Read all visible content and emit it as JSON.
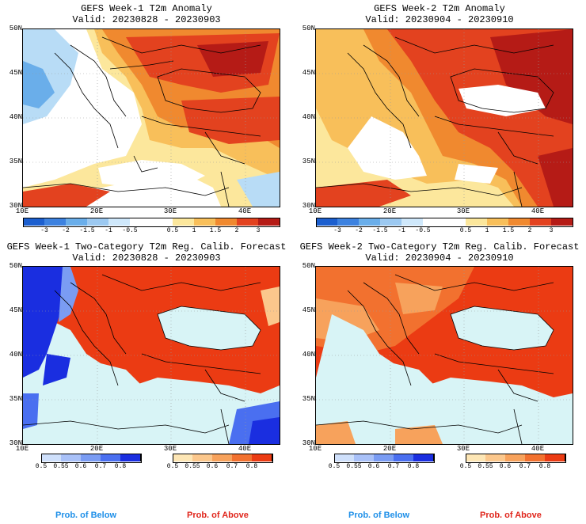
{
  "colors": {
    "sea": "#d8f4f6",
    "land_neutral": "#ffffff",
    "warm1": "#fce79c",
    "warm2": "#f8bf5a",
    "warm3": "#f0892f",
    "warm4": "#e3421f",
    "warm5": "#b51b16",
    "cool1": "#b8dcf6",
    "cool2": "#6aaeea",
    "prob_above_1": "#fde6b5",
    "prob_above_2": "#fbc78c",
    "prob_above_3": "#f7a25c",
    "prob_above_4": "#f2712f",
    "prob_above_5": "#eb3b13",
    "prob_below_1": "#cfe0fb",
    "prob_below_2": "#a9c1f8",
    "prob_below_3": "#7a9cf3",
    "prob_below_4": "#4a6ff0",
    "prob_below_5": "#1a2ee0",
    "below_label": "#1e8fe8",
    "above_label": "#e0261c"
  },
  "axes": {
    "lat_labels": [
      "50N",
      "45N",
      "40N",
      "35N",
      "30N"
    ],
    "lon_labels": [
      "10E",
      "20E",
      "30E",
      "40E"
    ]
  },
  "panels": [
    {
      "title": "GEFS Week-1 T2m Anomaly",
      "valid": "Valid: 20230828 - 20230903"
    },
    {
      "title": "GEFS Week-2 T2m Anomaly",
      "valid": "Valid: 20230904 - 20230910"
    },
    {
      "title": "GEFS Week-1 Two-Category T2m Reg. Calib. Forecast",
      "valid": "Valid: 20230828 - 20230903"
    },
    {
      "title": "GEFS Week-2 Two-Category T2m Reg. Calib. Forecast",
      "valid": "Valid: 20230904 - 20230910"
    }
  ],
  "anomaly_colorbar": {
    "labels": [
      "-3",
      "-2",
      "-1.5",
      "-1",
      "-0.5",
      "0.5",
      "1",
      "1.5",
      "2",
      "3"
    ]
  },
  "prob_colorbar": {
    "labels": [
      "0.5",
      "0.55",
      "0.6",
      "0.7",
      "0.8"
    ]
  },
  "legend": {
    "below": "Prob. of Below",
    "above": "Prob. of Above"
  }
}
